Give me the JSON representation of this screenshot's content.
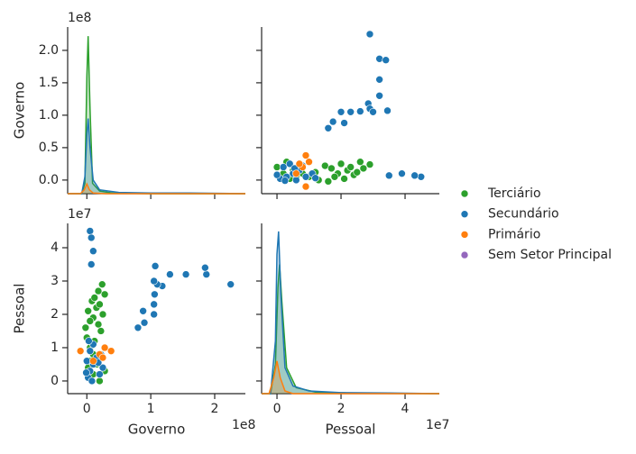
{
  "chart_data": [
    {
      "type": "kde",
      "ylabel": "Governo",
      "y_offset": "1e8",
      "xlim": [
        -0.3,
        2.48
      ],
      "ylim": [
        -0.21,
        2.36
      ],
      "xticks": [
        0,
        1,
        2
      ],
      "yticks": [
        {
          "value": 0,
          "label": "0.0"
        },
        {
          "value": 0.5,
          "label": "0.5"
        },
        {
          "value": 1,
          "label": "1.0"
        },
        {
          "value": 1.5,
          "label": "1.5"
        },
        {
          "value": 2,
          "label": "2.0"
        }
      ],
      "series": [
        {
          "name": "Terciário",
          "color": "#2ca02c",
          "x": [
            -0.3,
            -0.08,
            -0.03,
            0,
            0.02,
            0.05,
            0.09,
            0.2,
            0.4,
            1,
            2.48
          ],
          "values": [
            -0.21,
            -0.21,
            -0.05,
            1.6,
            2.22,
            1.1,
            -0.05,
            -0.17,
            -0.2,
            -0.21,
            -0.21
          ]
        },
        {
          "name": "Secundário",
          "color": "#1f77b4",
          "x": [
            -0.3,
            -0.08,
            -0.03,
            0,
            0.02,
            0.05,
            0.1,
            0.2,
            0.5,
            1,
            1.6,
            2.48
          ],
          "values": [
            -0.21,
            -0.21,
            0.05,
            0.7,
            0.95,
            0.5,
            0.0,
            -0.15,
            -0.19,
            -0.2,
            -0.2,
            -0.21
          ]
        },
        {
          "name": "Primário",
          "color": "#ff7f0e",
          "x": [
            -0.3,
            -0.1,
            -0.04,
            0.0,
            0.04,
            0.1,
            0.3,
            2.48
          ],
          "values": [
            -0.21,
            -0.21,
            -0.15,
            -0.06,
            -0.15,
            -0.2,
            -0.21,
            -0.21
          ]
        }
      ]
    },
    {
      "type": "scatter",
      "xlim": [
        -0.48,
        5.07
      ],
      "ylim": [
        -0.21,
        2.36
      ],
      "xticks": [
        0,
        2,
        4
      ],
      "yticks": [
        0,
        0.5,
        1,
        1.5,
        2
      ],
      "series": [
        {
          "name": "Terciário",
          "color": "#2ca02c",
          "x": [
            0.0,
            0.3,
            0.5,
            0.8,
            1.0,
            1.2,
            1.5,
            1.7,
            1.9,
            2.0,
            2.2,
            2.4,
            2.6,
            2.7,
            2.9,
            1.6,
            2.1,
            0.6,
            0.2,
            1.3,
            2.5,
            0.4,
            1.8,
            2.3
          ],
          "values": [
            0.2,
            0.28,
            0.15,
            0.1,
            0.05,
            0.12,
            0.22,
            0.18,
            0.1,
            0.25,
            0.15,
            0.08,
            0.28,
            0.18,
            0.24,
            -0.02,
            0.02,
            0.05,
            0.1,
            0.0,
            0.12,
            0.02,
            0.05,
            0.2
          ]
        },
        {
          "name": "Secundário",
          "color": "#1f77b4",
          "x": [
            2.9,
            3.2,
            3.4,
            3.2,
            3.2,
            2.85,
            2.9,
            3.0,
            3.45,
            2.6,
            2.0,
            2.3,
            1.75,
            2.1,
            1.6,
            4.5,
            4.3,
            3.9,
            3.5,
            0.1,
            0.3,
            0.5,
            0.7,
            0.2,
            0.4,
            0.6,
            0.9,
            1.1,
            0.0,
            0.8,
            1.2,
            0.25,
            0.55
          ],
          "values": [
            2.25,
            1.87,
            1.85,
            1.55,
            1.3,
            1.18,
            1.1,
            1.05,
            1.07,
            1.06,
            1.05,
            1.05,
            0.9,
            0.88,
            0.8,
            0.05,
            0.07,
            0.1,
            0.07,
            0.02,
            0.05,
            0.1,
            0.15,
            0.2,
            0.25,
            0.0,
            0.05,
            0.1,
            0.08,
            0.22,
            0.03,
            -0.01,
            0.18
          ]
        },
        {
          "name": "Primário",
          "color": "#ff7f0e",
          "x": [
            0.9,
            1.0,
            0.8,
            0.9,
            0.6,
            0.7
          ],
          "values": [
            0.38,
            0.28,
            0.2,
            -0.1,
            0.1,
            0.25
          ]
        },
        {
          "name": "Sem Setor Principal",
          "color": "#9467bd",
          "x": [],
          "values": []
        }
      ]
    },
    {
      "type": "scatter",
      "xlabel": "Governo",
      "ylabel": "Pessoal",
      "x_offset": "1e8",
      "y_offset": "1e7",
      "xlim": [
        -0.3,
        2.48
      ],
      "ylim": [
        -0.38,
        4.73
      ],
      "xticks": [
        0,
        1,
        2
      ],
      "yticks": [
        0,
        1,
        2,
        3,
        4
      ],
      "series": [
        {
          "name": "Terciário",
          "color": "#2ca02c",
          "x": [
            0.2,
            0.28,
            0.15,
            0.1,
            0.05,
            0.12,
            0.22,
            0.18,
            0.1,
            0.25,
            0.15,
            0.08,
            0.28,
            0.18,
            0.24,
            -0.02,
            0.02,
            0.05,
            0.1,
            0.0,
            0.12,
            0.02,
            0.05,
            0.2
          ],
          "values": [
            0.0,
            0.3,
            0.5,
            0.8,
            1.0,
            1.2,
            1.5,
            1.7,
            1.9,
            2.0,
            2.2,
            2.4,
            2.6,
            2.7,
            2.9,
            1.6,
            2.1,
            0.6,
            0.2,
            1.3,
            2.5,
            0.4,
            1.8,
            2.3
          ]
        },
        {
          "name": "Secundário",
          "color": "#1f77b4",
          "x": [
            2.25,
            1.87,
            1.85,
            1.55,
            1.3,
            1.18,
            1.1,
            1.05,
            1.07,
            1.06,
            1.05,
            1.05,
            0.9,
            0.88,
            0.8,
            0.05,
            0.07,
            0.1,
            0.07,
            0.02,
            0.05,
            0.1,
            0.15,
            0.2,
            0.25,
            0.0,
            0.05,
            0.1,
            0.08,
            0.22,
            0.03,
            -0.01,
            0.18
          ],
          "values": [
            2.9,
            3.2,
            3.4,
            3.2,
            3.2,
            2.85,
            2.9,
            3.0,
            3.45,
            2.6,
            2.0,
            2.3,
            1.75,
            2.1,
            1.6,
            4.5,
            4.3,
            3.9,
            3.5,
            0.1,
            0.3,
            0.5,
            0.7,
            0.2,
            0.4,
            0.6,
            0.9,
            1.1,
            0.0,
            0.8,
            1.2,
            0.25,
            0.55
          ]
        },
        {
          "name": "Primário",
          "color": "#ff7f0e",
          "x": [
            0.38,
            0.28,
            0.2,
            -0.1,
            0.1,
            0.25
          ],
          "values": [
            0.9,
            1.0,
            0.8,
            0.9,
            0.6,
            0.7
          ]
        }
      ]
    },
    {
      "type": "kde",
      "xlabel": "Pessoal",
      "x_offset": "1e7",
      "xlim": [
        -0.48,
        5.07
      ],
      "ylim": [
        -0.38,
        4.73
      ],
      "xticks": [
        0,
        2,
        4
      ],
      "yticks": [
        0,
        1,
        2,
        3,
        4
      ],
      "series": [
        {
          "name": "Terciário",
          "color": "#2ca02c",
          "x": [
            -0.48,
            -0.2,
            -0.05,
            0.03,
            0.08,
            0.15,
            0.3,
            0.6,
            1.2,
            2.5,
            5.07
          ],
          "values": [
            -0.38,
            -0.38,
            0.5,
            2.8,
            3.5,
            2.4,
            0.4,
            -0.2,
            -0.33,
            -0.37,
            -0.38
          ]
        },
        {
          "name": "Secundário",
          "color": "#1f77b4",
          "x": [
            -0.48,
            -0.2,
            -0.05,
            0.0,
            0.05,
            0.12,
            0.25,
            0.5,
            1,
            2,
            3.5,
            5.07
          ],
          "values": [
            -0.38,
            -0.38,
            1.2,
            3.8,
            4.49,
            2.6,
            0.4,
            -0.15,
            -0.3,
            -0.35,
            -0.36,
            -0.38
          ]
        },
        {
          "name": "Primário",
          "color": "#ff7f0e",
          "x": [
            -0.48,
            -0.25,
            -0.1,
            0.0,
            0.1,
            0.25,
            0.5,
            5.07
          ],
          "values": [
            -0.38,
            -0.38,
            0.1,
            0.6,
            0.1,
            -0.3,
            -0.38,
            -0.38
          ]
        }
      ]
    }
  ]
}
